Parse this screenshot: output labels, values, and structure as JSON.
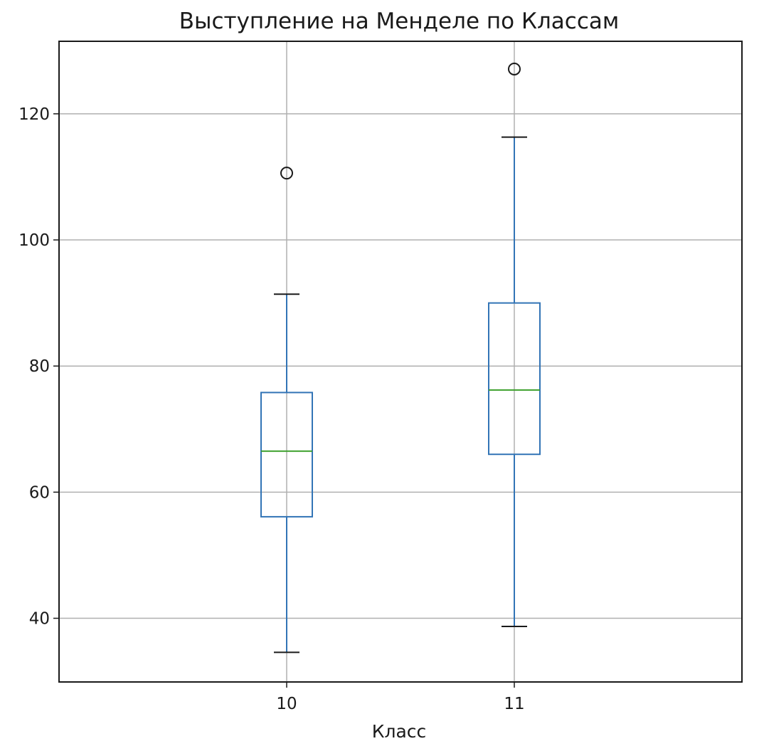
{
  "chart_data": {
    "type": "box",
    "title": "Выступление на Менделе по Классам",
    "xlabel": "Класс",
    "ylabel": "",
    "categories": [
      "10",
      "11"
    ],
    "ylim": [
      29.9,
      131.5
    ],
    "yticks": [
      40,
      60,
      80,
      100,
      120
    ],
    "grid": true,
    "boxes": [
      {
        "category": "10",
        "whisker_low": 34.6,
        "q1": 56.1,
        "median": 66.5,
        "q3": 75.8,
        "whisker_high": 91.4,
        "outliers": [
          110.6
        ]
      },
      {
        "category": "11",
        "whisker_low": 38.7,
        "q1": 66.0,
        "median": 76.2,
        "q3": 90.0,
        "whisker_high": 116.3,
        "outliers": [
          127.1
        ]
      }
    ],
    "colors": {
      "box": "#3274b6",
      "median": "#3ca02c",
      "whisker_cap": "#1a1a1a",
      "outlier": "#1a1a1a",
      "grid": "#b0b0b0",
      "axes": "#1a1a1a"
    }
  }
}
